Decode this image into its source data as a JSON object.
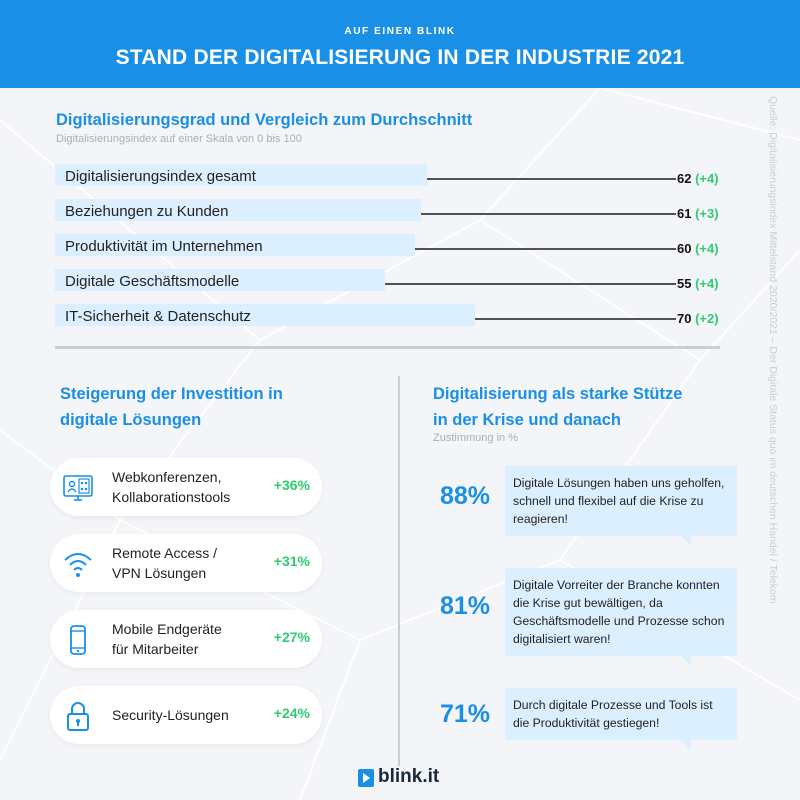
{
  "header": {
    "kicker": "AUF EINEN BLINK",
    "title": "STAND DER DIGITALISIERUNG IN DER INDUSTRIE 2021"
  },
  "source": "Quelle: Digitalisierungsindex Mittelstand 2020/2021 – Der Digitale Status quo im deutschen Handel / Telekom",
  "section1": {
    "title": "Digitalisierungsgrad und Vergleich zum Durchschnitt",
    "subtitle": "Digitalisierungsindex auf einer Skala von 0 bis 100"
  },
  "chart_data": {
    "type": "bar",
    "orientation": "horizontal",
    "categories": [
      "Digitalisierungsindex gesamt",
      "Beziehungen zu Kunden",
      "Produktivität im Unternehmen",
      "Digitale Geschäftsmodelle",
      "IT-Sicherheit & Datenschutz"
    ],
    "values": [
      62,
      61,
      60,
      55,
      70
    ],
    "changes": [
      "(+4)",
      "(+3)",
      "(+4)",
      "(+4)",
      "(+2)"
    ],
    "title": "Digitalisierungsgrad und Vergleich zum Durchschnitt",
    "subtitle": "Digitalisierungsindex auf einer Skala von 0 bis 100",
    "xlim": [
      0,
      100
    ],
    "colors": {
      "bar": "#dcefff",
      "change": "#2ecc71",
      "line": "#1b1b1b"
    }
  },
  "section2": {
    "title_line1": "Steigerung der Investition in",
    "title_line2": "digitale Lösungen",
    "items": [
      {
        "icon": "video-conference-icon",
        "label_line1": "Webkonferenzen,",
        "label_line2": "Kollaborationstools",
        "value": "+36%"
      },
      {
        "icon": "wifi-icon",
        "label_line1": "Remote Access /",
        "label_line2": "VPN Lösungen",
        "value": "+31%"
      },
      {
        "icon": "smartphone-icon",
        "label_line1": "Mobile Endgeräte",
        "label_line2": "für Mitarbeiter",
        "value": "+27%"
      },
      {
        "icon": "padlock-icon",
        "label_line1": "Security-Lösungen",
        "label_line2": "",
        "value": "+24%"
      }
    ]
  },
  "section3": {
    "title_line1": "Digitalisierung als starke Stütze",
    "title_line2": "in der Krise und danach",
    "subtitle": "Zustimmung in %",
    "items": [
      {
        "percent": "88%",
        "text": "Digitale Lösungen haben uns geholfen, schnell und flexibel auf die Krise zu reagieren!"
      },
      {
        "percent": "81%",
        "text": "Digitale Vorreiter der Branche konnten die Krise gut bewältigen, da Geschäftsmodelle und Prozesse schon digitalisiert waren!"
      },
      {
        "percent": "71%",
        "text": "Durch digitale Prozesse und Tools ist die Produktivität gestiegen!"
      }
    ]
  },
  "logo": {
    "text": "blink.it"
  },
  "colors": {
    "accent": "#1a8fe6",
    "green": "#2ecc71",
    "bubble": "#dcefff"
  }
}
